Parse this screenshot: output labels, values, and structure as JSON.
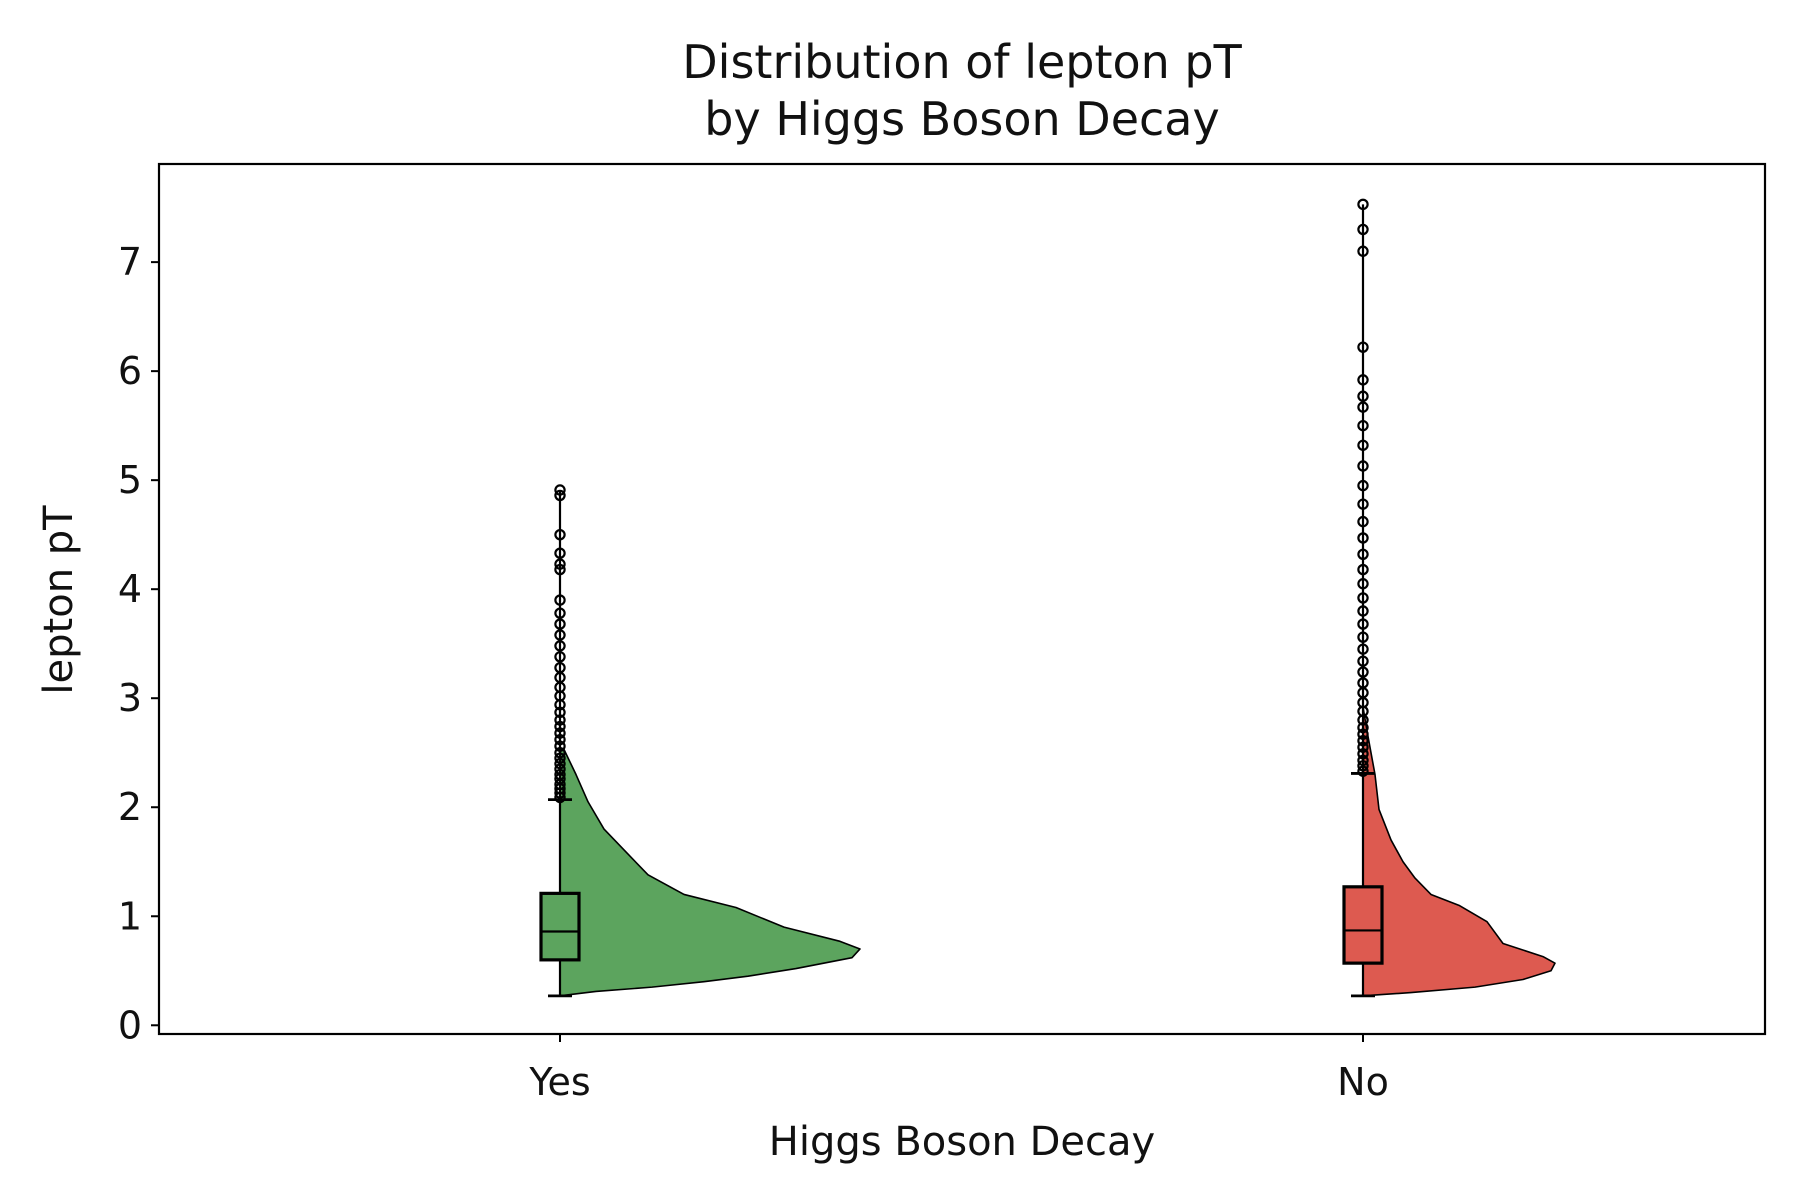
{
  "chart_data": {
    "type": "violin",
    "title": "Distribution of lepton pT\nby Higgs Boson Decay",
    "xlabel": "Higgs Boson Decay",
    "ylabel": "lepton pT",
    "ylim": [
      -0.08,
      7.9
    ],
    "yticks": [
      0,
      1,
      2,
      3,
      4,
      5,
      6,
      7
    ],
    "categories": [
      "Yes",
      "No"
    ],
    "grid": false,
    "legend": "none",
    "series": [
      {
        "category": "Yes",
        "color": "#5ca45e",
        "box": {
          "whisker_low": 0.27,
          "q1": 0.6,
          "median": 0.86,
          "q3": 1.21,
          "whisker_high": 2.07
        },
        "half_violin_density": [
          [
            0.27,
            0.0
          ],
          [
            0.31,
            0.09
          ],
          [
            0.35,
            0.23
          ],
          [
            0.4,
            0.36
          ],
          [
            0.45,
            0.47
          ],
          [
            0.52,
            0.59
          ],
          [
            0.62,
            0.73
          ],
          [
            0.7,
            0.75
          ],
          [
            0.77,
            0.7
          ],
          [
            0.9,
            0.56
          ],
          [
            1.08,
            0.44
          ],
          [
            1.2,
            0.31
          ],
          [
            1.38,
            0.22
          ],
          [
            1.57,
            0.17
          ],
          [
            1.8,
            0.11
          ],
          [
            2.05,
            0.07
          ],
          [
            2.3,
            0.04
          ],
          [
            2.53,
            0.01
          ]
        ],
        "outliers": [
          2.09,
          2.13,
          2.17,
          2.21,
          2.26,
          2.3,
          2.35,
          2.4,
          2.45,
          2.5,
          2.56,
          2.62,
          2.68,
          2.74,
          2.8,
          2.87,
          2.94,
          3.02,
          3.1,
          3.19,
          3.28,
          3.38,
          3.48,
          3.58,
          3.68,
          3.78,
          3.9,
          4.18,
          4.23,
          4.33,
          4.5,
          4.86,
          4.91
        ]
      },
      {
        "category": "No",
        "color": "#dd5a50",
        "box": {
          "whisker_low": 0.27,
          "q1": 0.57,
          "median": 0.87,
          "q3": 1.27,
          "whisker_high": 2.31
        },
        "half_violin_density": [
          [
            0.27,
            0.0
          ],
          [
            0.3,
            0.12
          ],
          [
            0.35,
            0.28
          ],
          [
            0.42,
            0.4
          ],
          [
            0.5,
            0.47
          ],
          [
            0.57,
            0.48
          ],
          [
            0.63,
            0.45
          ],
          [
            0.75,
            0.35
          ],
          [
            0.95,
            0.31
          ],
          [
            1.1,
            0.24
          ],
          [
            1.2,
            0.17
          ],
          [
            1.35,
            0.13
          ],
          [
            1.5,
            0.1
          ],
          [
            1.7,
            0.07
          ],
          [
            1.98,
            0.04
          ],
          [
            2.3,
            0.03
          ],
          [
            2.7,
            0.01
          ],
          [
            2.92,
            0.0
          ]
        ],
        "outliers": [
          2.33,
          2.38,
          2.43,
          2.49,
          2.55,
          2.61,
          2.67,
          2.73,
          2.8,
          2.88,
          2.96,
          3.05,
          3.14,
          3.24,
          3.34,
          3.45,
          3.56,
          3.68,
          3.8,
          3.92,
          4.05,
          4.18,
          4.32,
          4.47,
          4.62,
          4.78,
          4.95,
          5.13,
          5.32,
          5.5,
          5.67,
          5.77,
          5.92,
          6.22,
          7.1,
          7.3,
          7.53
        ]
      }
    ]
  }
}
